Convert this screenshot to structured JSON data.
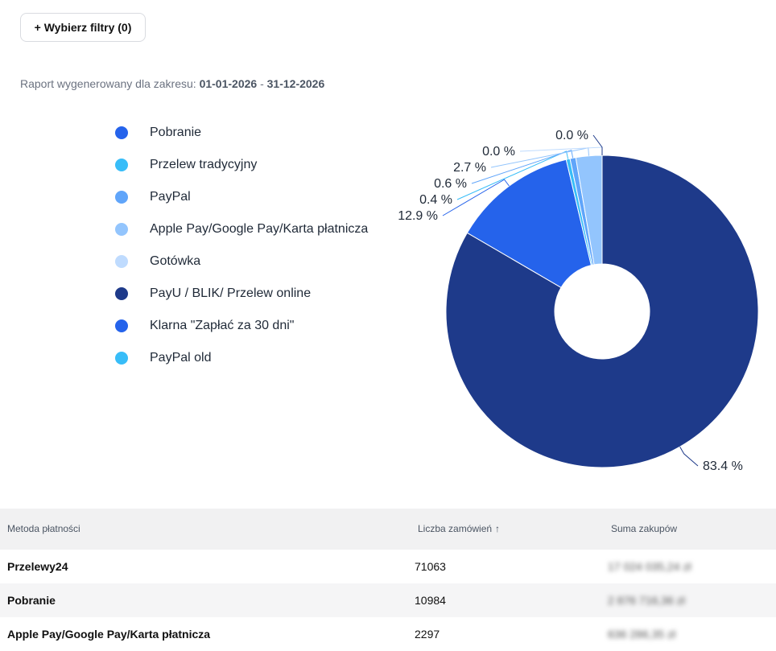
{
  "filters": {
    "button_label": "+ Wybierz filtry (0)"
  },
  "report": {
    "prefix": "Raport wygenerowany dla zakresu:",
    "date_from": "01-01-2026",
    "separator": "-",
    "date_to": "31-12-2026"
  },
  "legend": [
    {
      "label": "Pobranie",
      "color": "#2563eb"
    },
    {
      "label": "Przelew tradycyjny",
      "color": "#38bdf8"
    },
    {
      "label": "PayPal",
      "color": "#60a5fa"
    },
    {
      "label": "Apple Pay/Google Pay/Karta płatnicza",
      "color": "#93c5fd"
    },
    {
      "label": "Gotówka",
      "color": "#bfdbfe"
    },
    {
      "label": "PayU / BLIK/ Przelew online",
      "color": "#1e3a8a"
    },
    {
      "label": "Klarna \"Zapłać za 30 dni\"",
      "color": "#2563eb"
    },
    {
      "label": "PayPal old",
      "color": "#38bdf8"
    }
  ],
  "chart_data": {
    "type": "pie",
    "donut": true,
    "slices": [
      {
        "value": 83.4,
        "label": "83.4 %",
        "color": "#1e3a8a"
      },
      {
        "value": 12.9,
        "label": "12.9 %",
        "color": "#2563eb"
      },
      {
        "value": 0.4,
        "label": "0.4 %",
        "color": "#38bdf8"
      },
      {
        "value": 0.6,
        "label": "0.6 %",
        "color": "#60a5fa"
      },
      {
        "value": 2.7,
        "label": "2.7 %",
        "color": "#93c5fd"
      },
      {
        "value": 0.0,
        "label": "0.0 %",
        "color": "#bfdbfe"
      },
      {
        "value": 0.0,
        "label": "0.0 %",
        "color": "#1e3a8a"
      }
    ]
  },
  "table": {
    "headers": {
      "method": "Metoda płatności",
      "count": "Liczba zamówień",
      "sum": "Suma zakupów"
    },
    "sort_icon": "arrow-up-icon",
    "rows": [
      {
        "method": "Przelewy24",
        "count": "71063",
        "sum": "17 024 035,24 zł"
      },
      {
        "method": "Pobranie",
        "count": "10984",
        "sum": "2 876 716,36 zł"
      },
      {
        "method": "Apple Pay/Google Pay/Karta płatnicza",
        "count": "2297",
        "sum": "636 286,35 zł"
      }
    ]
  }
}
